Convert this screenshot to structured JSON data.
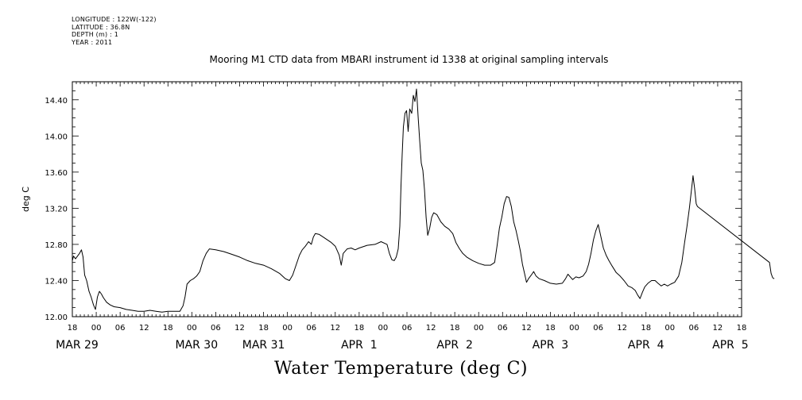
{
  "header": {
    "meta_lines": [
      "LONGITUDE : 122W(-122)",
      "LATITUDE : 36.8N",
      "DEPTH (m) : 1",
      "YEAR : 2011"
    ]
  },
  "figure": {
    "title": "Mooring M1 CTD data from MBARI instrument id 1338 at original sampling intervals",
    "bottom_title": "Water Temperature (deg C)"
  },
  "chart_data": {
    "type": "line",
    "title": "Mooring M1 CTD data from MBARI instrument id 1338 at original sampling intervals",
    "xlabel": "",
    "ylabel": "deg C",
    "xlim_hours": [
      0,
      168
    ],
    "ylim": [
      12.0,
      14.6
    ],
    "y_ticks": [
      "12.00",
      "12.40",
      "12.80",
      "13.20",
      "13.60",
      "14.00",
      "14.40"
    ],
    "x_hour_ticks": [
      "18",
      "00",
      "06",
      "12",
      "18",
      "00",
      "06",
      "12",
      "18",
      "00",
      "06",
      "12",
      "18",
      "00",
      "06",
      "12",
      "18",
      "00",
      "06",
      "12",
      "18",
      "00",
      "06",
      "12",
      "18",
      "00",
      "06",
      "12",
      "18"
    ],
    "x_date_labels": [
      "MAR 29",
      "MAR 30",
      "MAR 31",
      "APR  1",
      "APR  2",
      "APR  3",
      "APR  4",
      "APR  5"
    ],
    "series": [
      {
        "name": "Water Temperature",
        "points": [
          [
            0.0,
            12.62
          ],
          [
            0.3,
            12.67
          ],
          [
            0.8,
            12.64
          ],
          [
            1.3,
            12.67
          ],
          [
            1.8,
            12.7
          ],
          [
            2.3,
            12.74
          ],
          [
            2.7,
            12.66
          ],
          [
            3.1,
            12.46
          ],
          [
            3.6,
            12.4
          ],
          [
            4.2,
            12.28
          ],
          [
            4.7,
            12.22
          ],
          [
            5.3,
            12.13
          ],
          [
            5.8,
            12.08
          ],
          [
            6.3,
            12.22
          ],
          [
            6.8,
            12.28
          ],
          [
            7.3,
            12.25
          ],
          [
            7.8,
            12.21
          ],
          [
            8.6,
            12.16
          ],
          [
            9.5,
            12.13
          ],
          [
            10.5,
            12.11
          ],
          [
            12.0,
            12.1
          ],
          [
            13.5,
            12.08
          ],
          [
            15.0,
            12.07
          ],
          [
            16.5,
            12.06
          ],
          [
            18.0,
            12.06
          ],
          [
            19.5,
            12.07
          ],
          [
            21.0,
            12.06
          ],
          [
            22.5,
            12.05
          ],
          [
            24.0,
            12.06
          ],
          [
            25.5,
            12.06
          ],
          [
            27.0,
            12.06
          ],
          [
            27.8,
            12.12
          ],
          [
            28.3,
            12.22
          ],
          [
            28.8,
            12.36
          ],
          [
            29.6,
            12.4
          ],
          [
            30.4,
            12.42
          ],
          [
            31.2,
            12.45
          ],
          [
            32.0,
            12.5
          ],
          [
            32.8,
            12.62
          ],
          [
            33.6,
            12.7
          ],
          [
            34.4,
            12.75
          ],
          [
            36.0,
            12.74
          ],
          [
            38.0,
            12.72
          ],
          [
            40.0,
            12.69
          ],
          [
            42.0,
            12.66
          ],
          [
            44.0,
            12.62
          ],
          [
            46.0,
            12.59
          ],
          [
            48.0,
            12.57
          ],
          [
            50.0,
            12.53
          ],
          [
            52.0,
            12.48
          ],
          [
            53.5,
            12.42
          ],
          [
            54.5,
            12.4
          ],
          [
            55.3,
            12.46
          ],
          [
            56.0,
            12.55
          ],
          [
            57.0,
            12.68
          ],
          [
            57.7,
            12.74
          ],
          [
            58.5,
            12.78
          ],
          [
            59.3,
            12.83
          ],
          [
            60.0,
            12.8
          ],
          [
            60.5,
            12.88
          ],
          [
            61.0,
            12.92
          ],
          [
            62.0,
            12.91
          ],
          [
            63.0,
            12.88
          ],
          [
            64.0,
            12.85
          ],
          [
            65.0,
            12.82
          ],
          [
            66.0,
            12.78
          ],
          [
            67.0,
            12.68
          ],
          [
            67.5,
            12.57
          ],
          [
            68.0,
            12.7
          ],
          [
            69.0,
            12.75
          ],
          [
            70.0,
            12.76
          ],
          [
            71.0,
            12.74
          ],
          [
            72.0,
            12.76
          ],
          [
            74.0,
            12.79
          ],
          [
            76.0,
            12.8
          ],
          [
            77.5,
            12.83
          ],
          [
            79.0,
            12.8
          ],
          [
            79.6,
            12.7
          ],
          [
            80.2,
            12.63
          ],
          [
            80.8,
            12.62
          ],
          [
            81.3,
            12.66
          ],
          [
            81.8,
            12.75
          ],
          [
            82.2,
            13.0
          ],
          [
            82.5,
            13.45
          ],
          [
            82.8,
            13.8
          ],
          [
            83.1,
            14.1
          ],
          [
            83.5,
            14.25
          ],
          [
            83.9,
            14.28
          ],
          [
            84.3,
            14.05
          ],
          [
            84.7,
            14.3
          ],
          [
            85.2,
            14.25
          ],
          [
            85.6,
            14.45
          ],
          [
            86.0,
            14.38
          ],
          [
            86.4,
            14.52
          ],
          [
            86.8,
            14.22
          ],
          [
            87.2,
            13.95
          ],
          [
            87.6,
            13.7
          ],
          [
            88.0,
            13.62
          ],
          [
            88.4,
            13.4
          ],
          [
            88.8,
            13.1
          ],
          [
            89.2,
            12.9
          ],
          [
            89.7,
            12.98
          ],
          [
            90.2,
            13.1
          ],
          [
            90.7,
            13.15
          ],
          [
            91.5,
            13.13
          ],
          [
            92.5,
            13.05
          ],
          [
            93.5,
            13.0
          ],
          [
            94.5,
            12.97
          ],
          [
            95.5,
            12.92
          ],
          [
            96.3,
            12.82
          ],
          [
            97.2,
            12.75
          ],
          [
            98.0,
            12.7
          ],
          [
            99.0,
            12.66
          ],
          [
            100.5,
            12.62
          ],
          [
            102.0,
            12.59
          ],
          [
            103.5,
            12.57
          ],
          [
            105.0,
            12.57
          ],
          [
            106.0,
            12.6
          ],
          [
            106.6,
            12.78
          ],
          [
            107.2,
            12.98
          ],
          [
            107.8,
            13.1
          ],
          [
            108.4,
            13.25
          ],
          [
            109.0,
            13.33
          ],
          [
            109.6,
            13.32
          ],
          [
            110.2,
            13.22
          ],
          [
            110.8,
            13.05
          ],
          [
            111.4,
            12.95
          ],
          [
            112.0,
            12.83
          ],
          [
            112.5,
            12.72
          ],
          [
            113.0,
            12.58
          ],
          [
            113.5,
            12.48
          ],
          [
            114.0,
            12.38
          ],
          [
            114.5,
            12.42
          ],
          [
            115.2,
            12.46
          ],
          [
            115.8,
            12.5
          ],
          [
            116.4,
            12.45
          ],
          [
            117.2,
            12.42
          ],
          [
            118.5,
            12.4
          ],
          [
            120.0,
            12.37
          ],
          [
            121.5,
            12.36
          ],
          [
            123.0,
            12.37
          ],
          [
            123.8,
            12.42
          ],
          [
            124.4,
            12.47
          ],
          [
            125.0,
            12.44
          ],
          [
            125.6,
            12.41
          ],
          [
            126.4,
            12.44
          ],
          [
            127.2,
            12.43
          ],
          [
            128.2,
            12.45
          ],
          [
            129.0,
            12.5
          ],
          [
            129.6,
            12.58
          ],
          [
            130.2,
            12.7
          ],
          [
            130.8,
            12.85
          ],
          [
            131.4,
            12.95
          ],
          [
            132.0,
            13.02
          ],
          [
            132.6,
            12.9
          ],
          [
            133.3,
            12.76
          ],
          [
            134.0,
            12.68
          ],
          [
            134.7,
            12.62
          ],
          [
            135.5,
            12.56
          ],
          [
            136.5,
            12.49
          ],
          [
            137.5,
            12.45
          ],
          [
            138.5,
            12.4
          ],
          [
            139.5,
            12.34
          ],
          [
            140.5,
            12.32
          ],
          [
            141.3,
            12.29
          ],
          [
            141.9,
            12.24
          ],
          [
            142.5,
            12.2
          ],
          [
            143.1,
            12.27
          ],
          [
            143.7,
            12.33
          ],
          [
            144.5,
            12.37
          ],
          [
            145.4,
            12.4
          ],
          [
            146.3,
            12.4
          ],
          [
            147.0,
            12.37
          ],
          [
            147.8,
            12.34
          ],
          [
            148.6,
            12.36
          ],
          [
            149.4,
            12.34
          ],
          [
            150.2,
            12.36
          ],
          [
            151.2,
            12.38
          ],
          [
            152.2,
            12.45
          ],
          [
            153.0,
            12.6
          ],
          [
            153.7,
            12.82
          ],
          [
            154.3,
            13.0
          ],
          [
            154.9,
            13.2
          ],
          [
            155.4,
            13.4
          ],
          [
            155.8,
            13.56
          ],
          [
            156.2,
            13.42
          ],
          [
            156.6,
            13.25
          ],
          [
            156.9,
            13.22
          ],
          [
            175.0,
            12.6
          ],
          [
            175.4,
            12.48
          ],
          [
            175.8,
            12.43
          ],
          [
            176.2,
            12.42
          ]
        ]
      }
    ],
    "grid": false,
    "legend": "none"
  }
}
